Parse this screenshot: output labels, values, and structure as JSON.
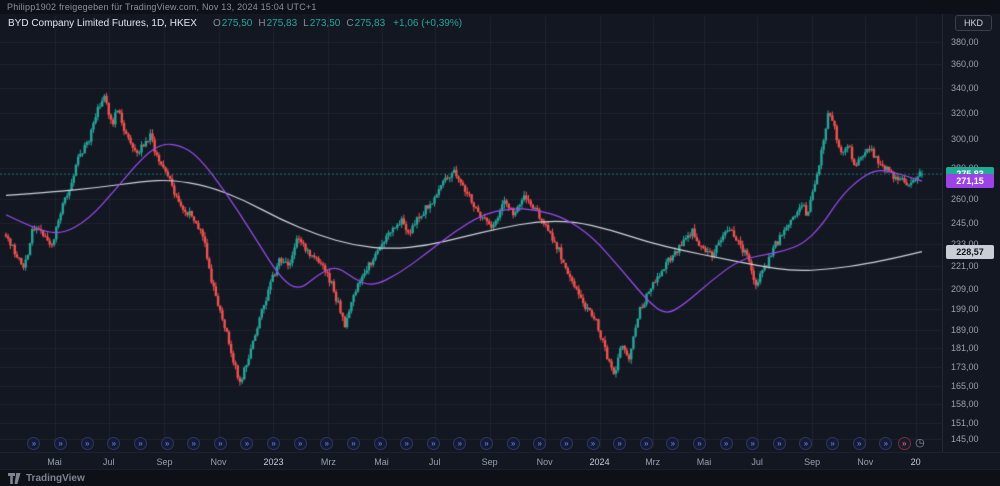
{
  "header": {
    "caption": "Philipp1902 freigegeben für TradingView.com, Nov 13, 2024 15:04 UTC+1"
  },
  "legend": {
    "symbol_line": "BYD Company Limited Futures, 1D, HKEX",
    "o_label": "O",
    "o_value": "275,50",
    "h_label": "H",
    "h_value": "275,83",
    "l_label": "L",
    "l_value": "273,50",
    "c_label": "C",
    "c_value": "275,83",
    "change": "+1,06 (+0,39%)"
  },
  "currency_button": "HKD",
  "price_axis": {
    "labels": [
      {
        "text": "380,00",
        "value": 380
      },
      {
        "text": "360,00",
        "value": 360
      },
      {
        "text": "340,00",
        "value": 340
      },
      {
        "text": "320,00",
        "value": 320
      },
      {
        "text": "300,00",
        "value": 300
      },
      {
        "text": "280,00",
        "value": 280
      },
      {
        "text": "260,00",
        "value": 260
      },
      {
        "text": "245,00",
        "value": 245
      },
      {
        "text": "233,00",
        "value": 233
      },
      {
        "text": "221,00",
        "value": 221
      },
      {
        "text": "209,00",
        "value": 209
      },
      {
        "text": "199,00",
        "value": 199
      },
      {
        "text": "189,00",
        "value": 189
      },
      {
        "text": "181,00",
        "value": 181
      },
      {
        "text": "173,00",
        "value": 173
      },
      {
        "text": "165,00",
        "value": 165
      },
      {
        "text": "158,00",
        "value": 158
      },
      {
        "text": "151,00",
        "value": 151
      },
      {
        "text": "145,00",
        "value": 145
      }
    ]
  },
  "badges": [
    {
      "name": "last-price-badge",
      "text": "275,83",
      "value": 275.83,
      "bg": "#22ab94",
      "fg": "#ffffff"
    },
    {
      "name": "purple-ma-badge",
      "text": "271,15",
      "value": 271.15,
      "bg": "#9c43e8",
      "fg": "#ffffff"
    },
    {
      "name": "white-ma-badge",
      "text": "228,57",
      "value": 228.57,
      "bg": "#c9cdd6",
      "fg": "#10131a"
    }
  ],
  "time_axis": {
    "labels": [
      {
        "text": "Mai",
        "t": 0.053,
        "major": false
      },
      {
        "text": "Jul",
        "t": 0.112,
        "major": false
      },
      {
        "text": "Sep",
        "t": 0.173,
        "major": false
      },
      {
        "text": "Nov",
        "t": 0.232,
        "major": false
      },
      {
        "text": "2023",
        "t": 0.292,
        "major": true
      },
      {
        "text": "Mrz",
        "t": 0.352,
        "major": false
      },
      {
        "text": "Mai",
        "t": 0.41,
        "major": false
      },
      {
        "text": "Jul",
        "t": 0.468,
        "major": false
      },
      {
        "text": "Sep",
        "t": 0.528,
        "major": false
      },
      {
        "text": "Nov",
        "t": 0.588,
        "major": false
      },
      {
        "text": "2024",
        "t": 0.648,
        "major": true
      },
      {
        "text": "Mrz",
        "t": 0.706,
        "major": false
      },
      {
        "text": "Mai",
        "t": 0.762,
        "major": false
      },
      {
        "text": "Jul",
        "t": 0.82,
        "major": false
      },
      {
        "text": "Sep",
        "t": 0.88,
        "major": false
      },
      {
        "text": "Nov",
        "t": 0.938,
        "major": false
      },
      {
        "text": "20",
        "t": 0.993,
        "major": true
      }
    ]
  },
  "markers": {
    "glyph": "»",
    "count": 33,
    "t_start": 0.03,
    "t_end": 0.96,
    "color": "#5a6cf0",
    "ring": "#2c3766",
    "special": {
      "glyph": "»",
      "t": 0.98,
      "color": "#ef5350",
      "ring": "#7a2e3a"
    },
    "clock": {
      "glyph": "◷",
      "t": 0.998,
      "color": "#8b93a8"
    }
  },
  "footer": {
    "brand": "TradingView"
  },
  "chart_data": {
    "type": "candlestick",
    "title": "BYD Company Limited Futures",
    "interval": "1D",
    "exchange": "HKEX",
    "currency": "HKD",
    "scale": "log",
    "ylim": [
      142,
      395
    ],
    "num_candles": 420,
    "last": {
      "open": 275.5,
      "high": 275.83,
      "low": 273.5,
      "close": 275.83,
      "change": "+1,06",
      "change_pct": "+0,39%"
    },
    "ma_values": {
      "purple_ma_last": 271.15,
      "white_ma_last": 228.57
    },
    "colors": {
      "up": "#26a69a",
      "down": "#ef5350",
      "ma_white": "#cfd3de",
      "ma_purple": "#9b4cf0",
      "grid": "rgba(255,255,255,0.05)",
      "bg": "#131722"
    },
    "close_path": [
      [
        0.0,
        238
      ],
      [
        0.01,
        228
      ],
      [
        0.02,
        220
      ],
      [
        0.03,
        244
      ],
      [
        0.04,
        238
      ],
      [
        0.05,
        232
      ],
      [
        0.06,
        252
      ],
      [
        0.07,
        268
      ],
      [
        0.08,
        288
      ],
      [
        0.09,
        300
      ],
      [
        0.1,
        322
      ],
      [
        0.108,
        332
      ],
      [
        0.115,
        310
      ],
      [
        0.122,
        325
      ],
      [
        0.13,
        305
      ],
      [
        0.14,
        292
      ],
      [
        0.15,
        295
      ],
      [
        0.158,
        305
      ],
      [
        0.165,
        288
      ],
      [
        0.175,
        278
      ],
      [
        0.185,
        262
      ],
      [
        0.195,
        250
      ],
      [
        0.205,
        248
      ],
      [
        0.215,
        238
      ],
      [
        0.225,
        212
      ],
      [
        0.235,
        196
      ],
      [
        0.245,
        180
      ],
      [
        0.255,
        166
      ],
      [
        0.262,
        172
      ],
      [
        0.27,
        185
      ],
      [
        0.28,
        198
      ],
      [
        0.29,
        214
      ],
      [
        0.3,
        226
      ],
      [
        0.31,
        221
      ],
      [
        0.318,
        236
      ],
      [
        0.33,
        229
      ],
      [
        0.34,
        224
      ],
      [
        0.35,
        217
      ],
      [
        0.36,
        204
      ],
      [
        0.37,
        192
      ],
      [
        0.38,
        206
      ],
      [
        0.39,
        216
      ],
      [
        0.4,
        224
      ],
      [
        0.415,
        236
      ],
      [
        0.43,
        247
      ],
      [
        0.442,
        240
      ],
      [
        0.455,
        252
      ],
      [
        0.468,
        262
      ],
      [
        0.478,
        272
      ],
      [
        0.488,
        278
      ],
      [
        0.498,
        270
      ],
      [
        0.508,
        258
      ],
      [
        0.52,
        248
      ],
      [
        0.532,
        244
      ],
      [
        0.545,
        258
      ],
      [
        0.555,
        250
      ],
      [
        0.565,
        262
      ],
      [
        0.575,
        254
      ],
      [
        0.585,
        246
      ],
      [
        0.595,
        238
      ],
      [
        0.605,
        228
      ],
      [
        0.615,
        216
      ],
      [
        0.625,
        206
      ],
      [
        0.635,
        199
      ],
      [
        0.645,
        192
      ],
      [
        0.655,
        180
      ],
      [
        0.665,
        170
      ],
      [
        0.672,
        184
      ],
      [
        0.68,
        176
      ],
      [
        0.69,
        196
      ],
      [
        0.7,
        206
      ],
      [
        0.71,
        214
      ],
      [
        0.72,
        222
      ],
      [
        0.73,
        228
      ],
      [
        0.74,
        236
      ],
      [
        0.75,
        240
      ],
      [
        0.758,
        232
      ],
      [
        0.768,
        226
      ],
      [
        0.778,
        233
      ],
      [
        0.788,
        241
      ],
      [
        0.798,
        236
      ],
      [
        0.808,
        228
      ],
      [
        0.818,
        211
      ],
      [
        0.828,
        220
      ],
      [
        0.838,
        231
      ],
      [
        0.848,
        240
      ],
      [
        0.858,
        247
      ],
      [
        0.868,
        257
      ],
      [
        0.875,
        250
      ],
      [
        0.883,
        268
      ],
      [
        0.891,
        294
      ],
      [
        0.898,
        322
      ],
      [
        0.905,
        308
      ],
      [
        0.912,
        288
      ],
      [
        0.92,
        296
      ],
      [
        0.928,
        280
      ],
      [
        0.936,
        290
      ],
      [
        0.944,
        296
      ],
      [
        0.952,
        284
      ],
      [
        0.962,
        278
      ],
      [
        0.975,
        272
      ],
      [
        0.988,
        270
      ],
      [
        1.0,
        275.83
      ]
    ],
    "ma_white_path": [
      [
        0.0,
        262
      ],
      [
        0.05,
        264
      ],
      [
        0.1,
        267
      ],
      [
        0.15,
        271
      ],
      [
        0.18,
        272
      ],
      [
        0.22,
        268
      ],
      [
        0.26,
        259
      ],
      [
        0.3,
        247
      ],
      [
        0.34,
        238
      ],
      [
        0.38,
        232
      ],
      [
        0.42,
        230
      ],
      [
        0.46,
        232
      ],
      [
        0.5,
        237
      ],
      [
        0.54,
        242
      ],
      [
        0.58,
        246
      ],
      [
        0.62,
        246
      ],
      [
        0.66,
        241
      ],
      [
        0.7,
        234
      ],
      [
        0.74,
        229
      ],
      [
        0.78,
        225
      ],
      [
        0.82,
        221
      ],
      [
        0.86,
        218
      ],
      [
        0.9,
        219
      ],
      [
        0.94,
        222
      ],
      [
        0.97,
        225
      ],
      [
        1.0,
        228.57
      ]
    ],
    "ma_purple_path": [
      [
        0.0,
        250
      ],
      [
        0.03,
        242
      ],
      [
        0.06,
        238
      ],
      [
        0.09,
        247
      ],
      [
        0.12,
        266
      ],
      [
        0.15,
        288
      ],
      [
        0.17,
        297
      ],
      [
        0.19,
        296
      ],
      [
        0.21,
        288
      ],
      [
        0.24,
        264
      ],
      [
        0.27,
        238
      ],
      [
        0.3,
        214
      ],
      [
        0.32,
        208
      ],
      [
        0.34,
        216
      ],
      [
        0.36,
        221
      ],
      [
        0.38,
        214
      ],
      [
        0.4,
        210
      ],
      [
        0.43,
        217
      ],
      [
        0.46,
        228
      ],
      [
        0.49,
        240
      ],
      [
        0.52,
        250
      ],
      [
        0.55,
        254
      ],
      [
        0.58,
        253
      ],
      [
        0.61,
        248
      ],
      [
        0.64,
        237
      ],
      [
        0.67,
        220
      ],
      [
        0.7,
        203
      ],
      [
        0.72,
        196
      ],
      [
        0.74,
        201
      ],
      [
        0.77,
        213
      ],
      [
        0.8,
        224
      ],
      [
        0.83,
        227
      ],
      [
        0.85,
        229
      ],
      [
        0.87,
        233
      ],
      [
        0.89,
        243
      ],
      [
        0.91,
        260
      ],
      [
        0.93,
        272
      ],
      [
        0.95,
        279
      ],
      [
        0.97,
        277
      ],
      [
        1.0,
        271.15
      ]
    ]
  }
}
